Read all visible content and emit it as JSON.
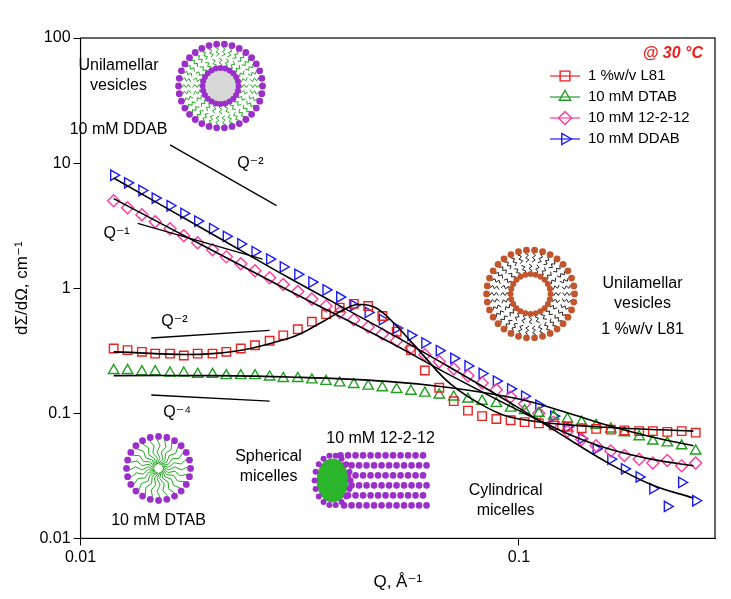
{
  "chart_data": {
    "type": "scatter",
    "title": "@ 30 °C",
    "x_label": "Q, Å⁻¹",
    "y_label": "dΣ/dΩ, cm⁻¹",
    "log": true,
    "grid": false,
    "legend": "upper right",
    "xlim": [
      0.01,
      0.28
    ],
    "xticks": [
      0.01,
      0.1
    ],
    "ylim": [
      0.01,
      100
    ],
    "yticks": [
      0.01,
      0.1,
      1,
      10,
      100
    ],
    "x": [
      0.0119,
      0.0128,
      0.0138,
      0.0148,
      0.016,
      0.0172,
      0.0185,
      0.02,
      0.0215,
      0.0232,
      0.025,
      0.027,
      0.029,
      0.0313,
      0.0337,
      0.0363,
      0.039,
      0.042,
      0.0453,
      0.0488,
      0.0526,
      0.0567,
      0.061,
      0.0658,
      0.071,
      0.0765,
      0.0824,
      0.0888,
      0.0957,
      0.103,
      0.111,
      0.12,
      0.129,
      0.139,
      0.15,
      0.162,
      0.174,
      0.188,
      0.202,
      0.218,
      0.235,
      0.253
    ],
    "series": [
      {
        "name": "1 %w/v L81",
        "color": "#e8231f",
        "marker": "square",
        "values": [
          0.33,
          0.32,
          0.31,
          0.3,
          0.3,
          0.29,
          0.3,
          0.3,
          0.31,
          0.33,
          0.35,
          0.38,
          0.42,
          0.47,
          0.54,
          0.62,
          0.7,
          0.75,
          0.72,
          0.6,
          0.45,
          0.32,
          0.22,
          0.16,
          0.125,
          0.105,
          0.095,
          0.09,
          0.088,
          0.085,
          0.083,
          0.08,
          0.078,
          0.076,
          0.075,
          0.074,
          0.073,
          0.072,
          0.072,
          0.071,
          0.072,
          0.07
        ],
        "fit": {
          "x": [
            0.0119,
            0.02,
            0.03,
            0.036,
            0.04,
            0.043,
            0.047,
            0.052,
            0.06,
            0.07,
            0.085,
            0.1,
            0.15,
            0.25
          ],
          "values": [
            0.31,
            0.3,
            0.4,
            0.55,
            0.68,
            0.74,
            0.7,
            0.52,
            0.3,
            0.17,
            0.11,
            0.09,
            0.078,
            0.072
          ]
        }
      },
      {
        "name": "10 mM DTAB",
        "color": "#1f9e1f",
        "marker": "triangle",
        "values": [
          0.22,
          0.22,
          0.215,
          0.215,
          0.21,
          0.21,
          0.205,
          0.205,
          0.2,
          0.2,
          0.2,
          0.195,
          0.19,
          0.19,
          0.185,
          0.18,
          0.175,
          0.17,
          0.165,
          0.16,
          0.155,
          0.15,
          0.145,
          0.14,
          0.135,
          0.13,
          0.125,
          0.12,
          0.11,
          0.105,
          0.1,
          0.095,
          0.09,
          0.085,
          0.08,
          0.075,
          0.07,
          0.065,
          0.06,
          0.058,
          0.055,
          0.05
        ],
        "fit": {
          "x": [
            0.0119,
            0.02,
            0.03,
            0.05,
            0.07,
            0.1,
            0.13,
            0.16,
            0.2,
            0.25
          ],
          "values": [
            0.2,
            0.2,
            0.195,
            0.18,
            0.16,
            0.13,
            0.1,
            0.08,
            0.065,
            0.055
          ]
        }
      },
      {
        "name": "10 mM 12-2-12",
        "color": "#ff3aa0",
        "marker": "diamond",
        "values": [
          5,
          4.4,
          3.86,
          3.4,
          2.99,
          2.63,
          2.31,
          2.03,
          1.78,
          1.57,
          1.38,
          1.21,
          1.07,
          0.94,
          0.82,
          0.72,
          0.64,
          0.56,
          0.49,
          0.43,
          0.38,
          0.334,
          0.294,
          0.258,
          0.227,
          0.2,
          0.175,
          0.154,
          0.135,
          0.119,
          0.1,
          0.085,
          0.072,
          0.062,
          0.055,
          0.05,
          0.046,
          0.043,
          0.04,
          0.042,
          0.038,
          0.04
        ],
        "fit": {
          "x": [
            0.0119,
            0.02,
            0.03,
            0.05,
            0.07,
            0.1,
            0.13,
            0.16,
            0.2,
            0.25
          ],
          "values": [
            5.2,
            2.0,
            0.95,
            0.38,
            0.2,
            0.105,
            0.068,
            0.052,
            0.043,
            0.038
          ]
        }
      },
      {
        "name": "10 mM DDAB",
        "color": "#1a1aff",
        "marker": "triangle-right",
        "values": [
          8,
          6.95,
          6.04,
          5.25,
          4.56,
          3.96,
          3.44,
          2.99,
          2.6,
          2.26,
          1.96,
          1.71,
          1.48,
          1.29,
          1.12,
          0.97,
          0.85,
          0.73,
          0.64,
          0.56,
          0.48,
          0.42,
          0.365,
          0.317,
          0.275,
          0.239,
          0.208,
          0.181,
          0.157,
          0.137,
          0.116,
          0.095,
          0.078,
          0.063,
          0.052,
          0.043,
          0.036,
          0.031,
          0.025,
          0.018,
          0.028,
          0.02
        ],
        "fit": {
          "x": [
            0.0119,
            0.02,
            0.03,
            0.05,
            0.07,
            0.1,
            0.13,
            0.16,
            0.2,
            0.25
          ],
          "values": [
            7.6,
            2.7,
            1.2,
            0.45,
            0.23,
            0.11,
            0.062,
            0.04,
            0.027,
            0.021
          ]
        }
      }
    ],
    "guides": [
      {
        "label": "Q⁻²",
        "x": [
          0.016,
          0.028
        ],
        "y": [
          14,
          4.57
        ]
      },
      {
        "label": "Q⁻¹",
        "x": [
          0.0135,
          0.026
        ],
        "y": [
          3.3,
          1.71
        ]
      },
      {
        "label": "Q⁻²",
        "x": [
          0.0145,
          0.027
        ],
        "y": [
          0.4,
          0.46
        ]
      },
      {
        "label": "Q⁻⁴",
        "x": [
          0.0145,
          0.027
        ],
        "y": [
          0.14,
          0.125
        ]
      }
    ],
    "annotations": [
      {
        "lines": [
          "Unilamellar",
          "vesicles",
          "10 mM DDAB"
        ]
      },
      {
        "lines": [
          "Unilamellar",
          "vesicles",
          "1 %w/v L81"
        ]
      },
      {
        "lines": [
          "Spherical",
          "micelles",
          "10 mM DTAB"
        ]
      },
      {
        "lines": [
          "10 mM 12-2-12",
          "Cylindrical",
          "micelles"
        ]
      }
    ]
  }
}
